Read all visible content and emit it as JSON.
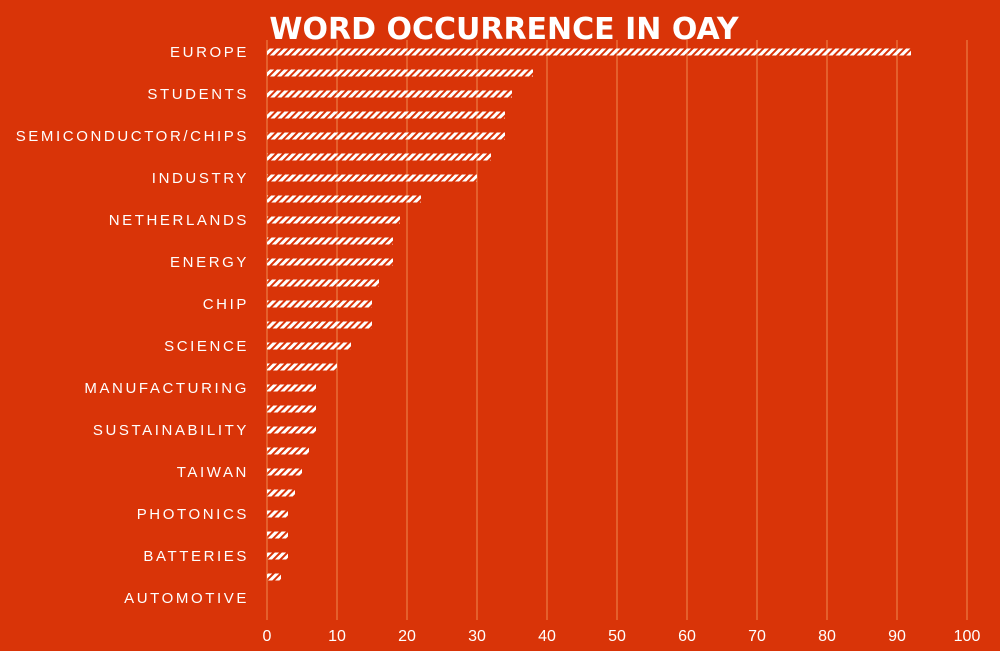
{
  "chart_data": {
    "type": "bar",
    "orientation": "horizontal",
    "title": "WORD OCCURRENCE IN OAY",
    "xlabel": "",
    "ylabel": "",
    "xlim": [
      0,
      100
    ],
    "xticks": [
      "0",
      "10",
      "20",
      "30",
      "40",
      "50",
      "60",
      "70",
      "80",
      "90",
      "100"
    ],
    "grid": "vertical",
    "categories": [
      "EUROPE",
      "",
      "STUDENTS",
      "",
      "SEMICONDUCTOR/CHIPS",
      "",
      "INDUSTRY",
      "",
      "NETHERLANDS",
      "",
      "ENERGY",
      "",
      "CHIP",
      "",
      "SCIENCE",
      "",
      "MANUFACTURING",
      "",
      "SUSTAINABILITY",
      "",
      "TAIWAN",
      "",
      "PHOTONICS",
      "",
      "BATTERIES",
      "",
      "AUTOMOTIVE"
    ],
    "values": [
      92,
      38,
      35,
      34,
      34,
      32,
      30,
      22,
      19,
      18,
      18,
      16,
      15,
      15,
      12,
      10,
      7,
      7,
      7,
      6,
      5,
      4,
      3,
      3,
      3,
      2,
      0
    ],
    "colors": {
      "background": "#d93408",
      "bar": "#ffffff",
      "gridline": "#ee8a50"
    }
  }
}
